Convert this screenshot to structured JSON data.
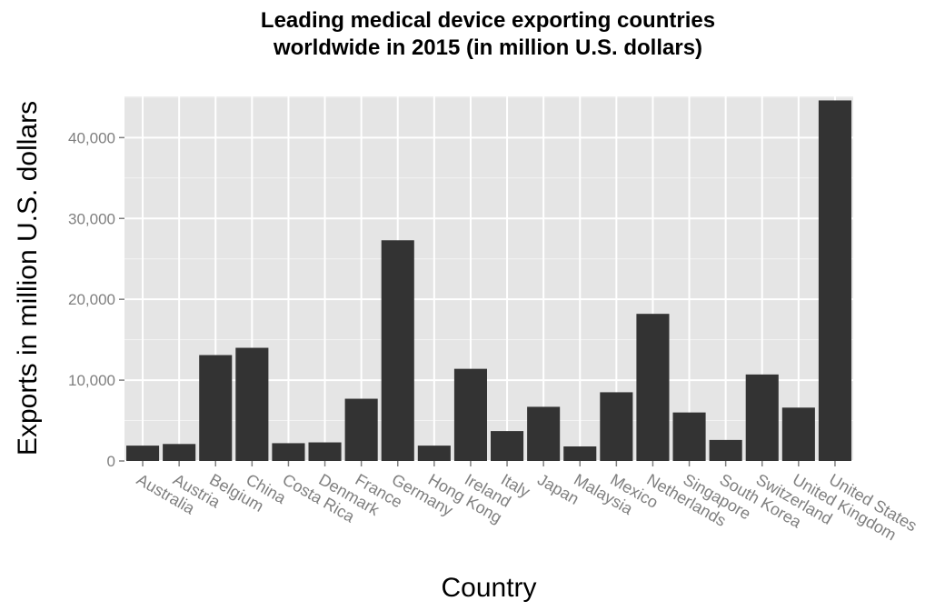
{
  "chart_data": {
    "type": "bar",
    "title_lines": [
      "Leading medical device exporting countries",
      "worldwide in 2015 (in million U.S. dollars)"
    ],
    "xlabel": "Country",
    "ylabel": "Exports in million U.S. dollars",
    "categories": [
      "Australia",
      "Austria",
      "Belgium",
      "China",
      "Costa Rica",
      "Denmark",
      "France",
      "Germany",
      "Hong Kong",
      "Ireland",
      "Italy",
      "Japan",
      "Malaysia",
      "Mexico",
      "Netherlands",
      "Singapore",
      "South Korea",
      "Switzerland",
      "United Kingdom",
      "United States"
    ],
    "values": [
      1900,
      2100,
      13100,
      14000,
      2200,
      2300,
      7700,
      27300,
      1900,
      11400,
      3700,
      6700,
      1800,
      8500,
      18200,
      6000,
      2600,
      10700,
      6600,
      44600
    ],
    "yticks": [
      0,
      10000,
      20000,
      30000,
      40000
    ],
    "ytick_labels": [
      "0",
      "10,000",
      "20,000",
      "30,000",
      "40,000"
    ],
    "ylim": [
      0,
      45100
    ],
    "grid": true,
    "colors": {
      "bar": "#333333",
      "panel": "#e5e5e5",
      "grid": "#ffffff",
      "tick": "#7f7f7f"
    }
  }
}
